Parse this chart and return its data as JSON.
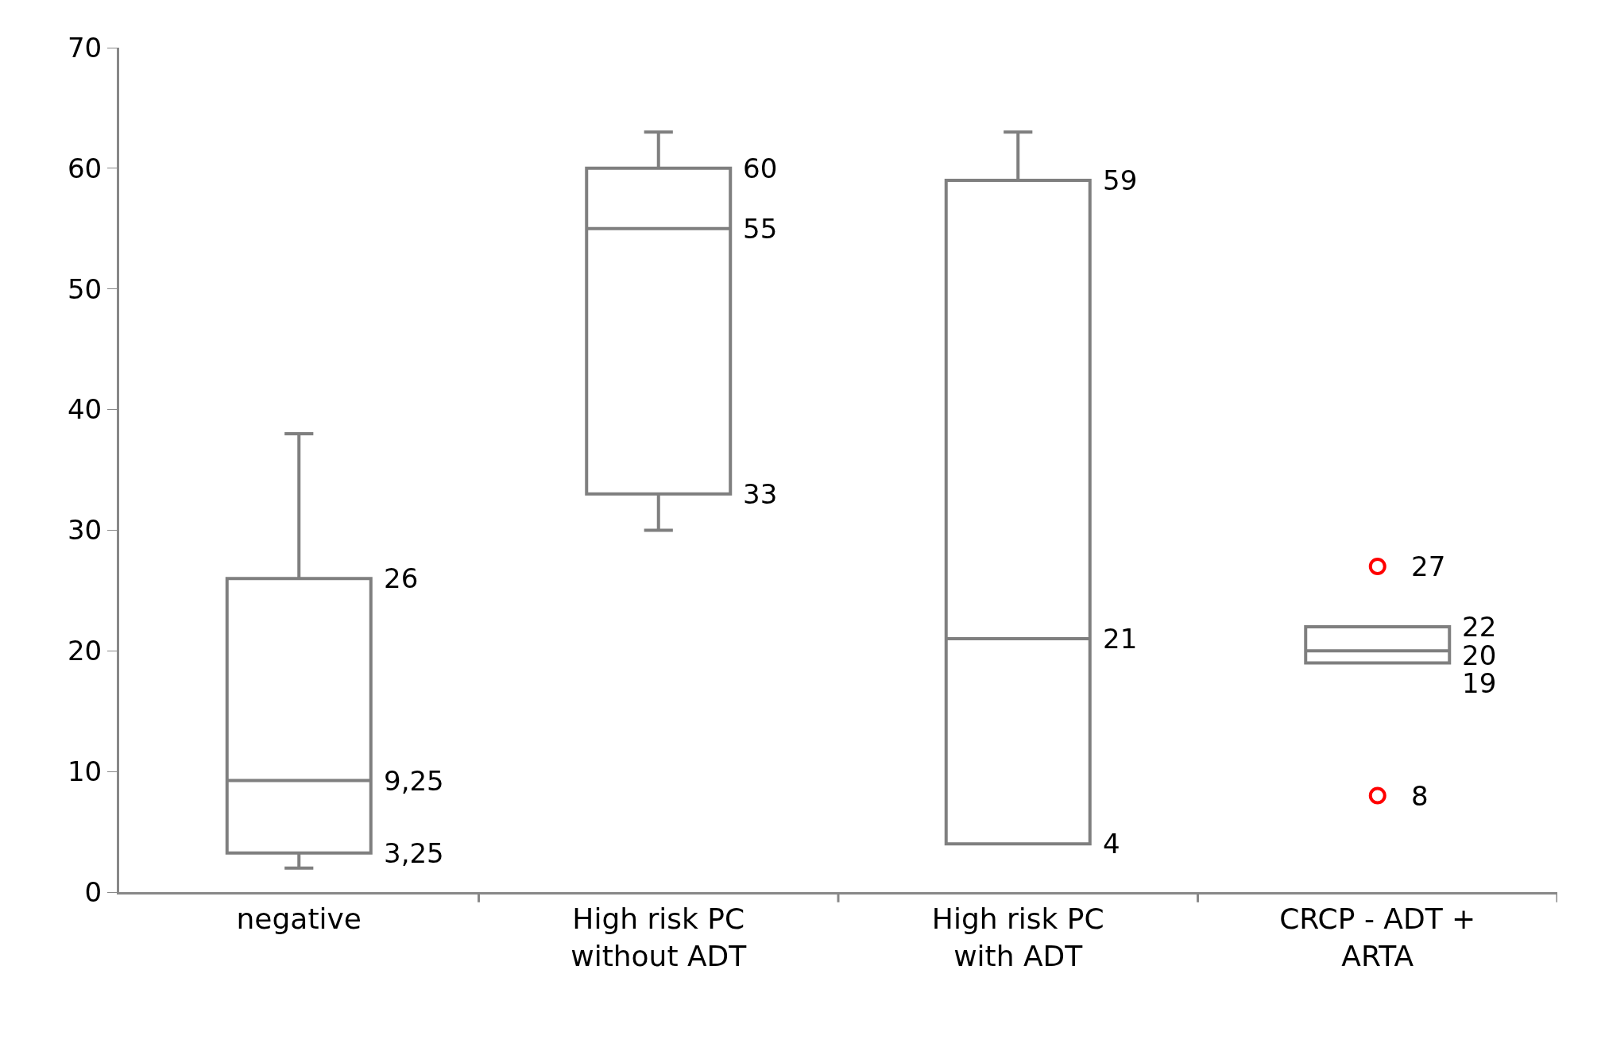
{
  "chart_data": {
    "type": "box",
    "categories": [
      "negative",
      "High risk PC without ADT",
      "High risk PC with ADT",
      "CRCP - ADT + ARTA"
    ],
    "color": "#7f7f7f",
    "boxes": [
      {
        "low": 2,
        "q1": 3.25,
        "median": 9.25,
        "q3": 26,
        "high": 38
      },
      {
        "low": 30,
        "q1": 33,
        "median": 55,
        "q3": 60,
        "high": 63
      },
      {
        "low": 4,
        "q1": 4,
        "median": 21,
        "q3": 59,
        "high": 63
      },
      {
        "low": 19,
        "q1": 19,
        "median": 20,
        "q3": 22,
        "high": 22
      }
    ],
    "series": [
      {
        "type": "scatter",
        "x": [
          "CRCP - ADT + ARTA",
          "CRCP - ADT + ARTA"
        ],
        "values": [
          27,
          8
        ],
        "value_labels": [
          "27",
          "8"
        ],
        "color": "#ff0000",
        "marker": "circle"
      }
    ],
    "ylim": [
      0,
      70
    ],
    "yticks": [
      0,
      10,
      20,
      30,
      40,
      50,
      60,
      70
    ],
    "grid": false,
    "annotations": [
      "26",
      "9,25",
      "3,25",
      "60",
      "55",
      "33",
      "59",
      "21",
      "4",
      "22",
      "20",
      "19"
    ]
  }
}
